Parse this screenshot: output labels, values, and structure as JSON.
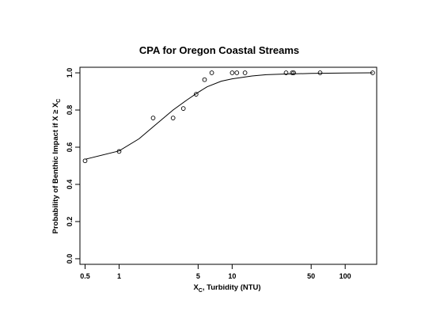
{
  "chart_data": {
    "type": "scatter",
    "title": "CPA for Oregon Coastal Streams",
    "xlabel": {
      "main": "X",
      "sub": "C",
      "rest": ", Turbidity (NTU)"
    },
    "ylabel": {
      "main": "Probability of Benthic Impact if X ≥ X",
      "sub": "C"
    },
    "x_scale": "log",
    "xlim": [
      0.45,
      190
    ],
    "ylim": [
      -0.03,
      1.03
    ],
    "x_ticks": [
      0.5,
      1,
      5,
      10,
      50,
      100
    ],
    "x_tick_labels": [
      "0.5",
      "1",
      "5",
      "10",
      "50",
      "100"
    ],
    "y_ticks": [
      0.0,
      0.2,
      0.4,
      0.6,
      0.8,
      1.0
    ],
    "y_tick_labels": [
      "0.0",
      "0.2",
      "0.4",
      "0.6",
      "0.8",
      "1.0"
    ],
    "grid": false,
    "series": [
      {
        "kind": "points",
        "marker": "open-circle",
        "x": [
          0.5,
          1.0,
          2.0,
          3.0,
          3.7,
          4.8,
          5.7,
          6.6,
          10.0,
          11.0,
          13.0,
          30.0,
          34.0,
          35.0,
          60.0,
          175.0
        ],
        "y": [
          0.527,
          0.577,
          0.757,
          0.757,
          0.808,
          0.885,
          0.963,
          1.0,
          1.0,
          1.0,
          1.0,
          1.0,
          1.0,
          1.0,
          1.0,
          1.0
        ]
      },
      {
        "kind": "smooth-line",
        "x": [
          0.5,
          1.0,
          1.5,
          2.0,
          3.0,
          4.0,
          5.0,
          6.0,
          8.0,
          10.0,
          15.0,
          20.0,
          30.0,
          50.0,
          100.0,
          175.0
        ],
        "y": [
          0.535,
          0.58,
          0.645,
          0.71,
          0.8,
          0.855,
          0.895,
          0.925,
          0.955,
          0.968,
          0.983,
          0.99,
          0.994,
          0.997,
          0.999,
          1.0
        ]
      }
    ]
  },
  "colors": {
    "ink": "#000000",
    "background": "#ffffff"
  }
}
